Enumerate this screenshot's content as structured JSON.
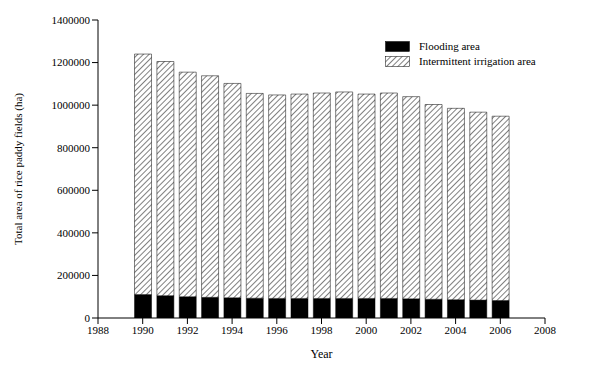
{
  "chart_data": {
    "type": "bar",
    "x_label": "Year",
    "y_label": "Total area of rice paddy fields (ha)",
    "x": [
      1990,
      1991,
      1992,
      1993,
      1994,
      1995,
      1996,
      1997,
      1998,
      1999,
      2000,
      2001,
      2002,
      2003,
      2004,
      2005,
      2006
    ],
    "series": [
      {
        "name": "Flooding area",
        "color": "#000000",
        "values": [
          110000,
          105000,
          100000,
          97000,
          95000,
          93000,
          92000,
          92000,
          92000,
          92000,
          92000,
          92000,
          90000,
          88000,
          86000,
          84000,
          82000
        ]
      },
      {
        "name": "Intermittent irrigation area",
        "color": "#808080",
        "values": [
          1130000,
          1100000,
          1055000,
          1041000,
          1007000,
          962000,
          956000,
          960000,
          965000,
          970000,
          960000,
          965000,
          950000,
          915000,
          899000,
          883000,
          866000
        ]
      }
    ],
    "xlim": [
      1988,
      2008
    ],
    "xticks": [
      1988,
      1990,
      1992,
      1994,
      1996,
      1998,
      2000,
      2002,
      2004,
      2006,
      2008
    ],
    "ylim": [
      0,
      1400000
    ],
    "yticks": [
      0,
      200000,
      400000,
      600000,
      800000,
      1000000,
      1200000,
      1400000
    ],
    "stacked": true,
    "legend": "upper right"
  }
}
